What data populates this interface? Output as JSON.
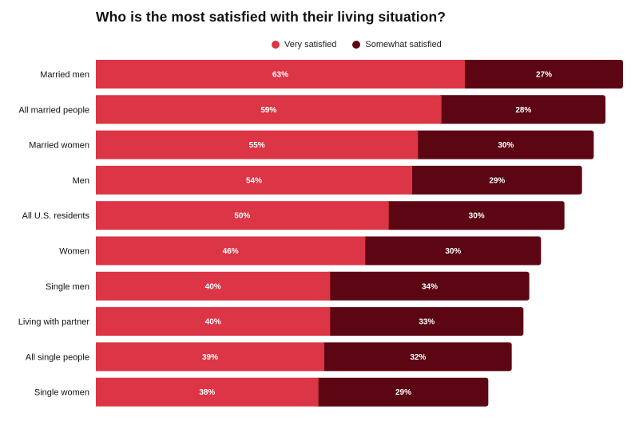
{
  "title": "Who is the most satisfied with their living situation?",
  "legend": {
    "items": [
      {
        "label": "Very satisfied",
        "color": "#dc3545"
      },
      {
        "label": "Somewhat satisfied",
        "color": "#5c0614"
      }
    ]
  },
  "chart_data": {
    "type": "bar",
    "orientation": "horizontal",
    "stacked": true,
    "title": "Who is the most satisfied with their living situation?",
    "categories": [
      "Married men",
      "All married people",
      "Married women",
      "Men",
      "All U.S. residents",
      "Women",
      "Single men",
      "Living with partner",
      "All single people",
      "Single women"
    ],
    "series": [
      {
        "name": "Very satisfied",
        "color": "#dc3545",
        "values": [
          63,
          59,
          55,
          54,
          50,
          46,
          40,
          40,
          39,
          38
        ],
        "labels": [
          "63%",
          "59%",
          "55%",
          "54%",
          "50%",
          "46%",
          "40%",
          "40%",
          "39%",
          "38%"
        ]
      },
      {
        "name": "Somewhat satisfied",
        "color": "#5c0614",
        "values": [
          27,
          28,
          30,
          29,
          30,
          30,
          34,
          33,
          32,
          29
        ],
        "labels": [
          "27%",
          "28%",
          "30%",
          "29%",
          "30%",
          "30%",
          "34%",
          "33%",
          "32%",
          "29%"
        ]
      }
    ],
    "xlim": [
      0,
      90
    ],
    "grid": false,
    "legend_position": "top-center"
  }
}
